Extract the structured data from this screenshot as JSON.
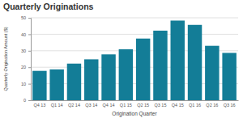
{
  "chart_data": {
    "type": "bar",
    "title": "Quarterly Originations",
    "x_label": "Origination Quarter",
    "y_label": "Quarterly Origination Amount ($)",
    "categories": [
      "Q4 13",
      "Q1 14",
      "Q2 14",
      "Q3 14",
      "Q4 14",
      "Q1 15",
      "Q2 15",
      "Q3 15",
      "Q4 15",
      "Q1 16",
      "Q2 16",
      "Q3 16"
    ],
    "values": [
      17.8,
      18.7,
      22.2,
      24.8,
      27.8,
      30.9,
      37.4,
      42.2,
      48.3,
      45.7,
      33.0,
      28.7
    ],
    "color": "#137d97",
    "ylim": [
      0,
      50
    ],
    "yticks": [
      0,
      10,
      20,
      30,
      40,
      50
    ],
    "grid": true
  }
}
